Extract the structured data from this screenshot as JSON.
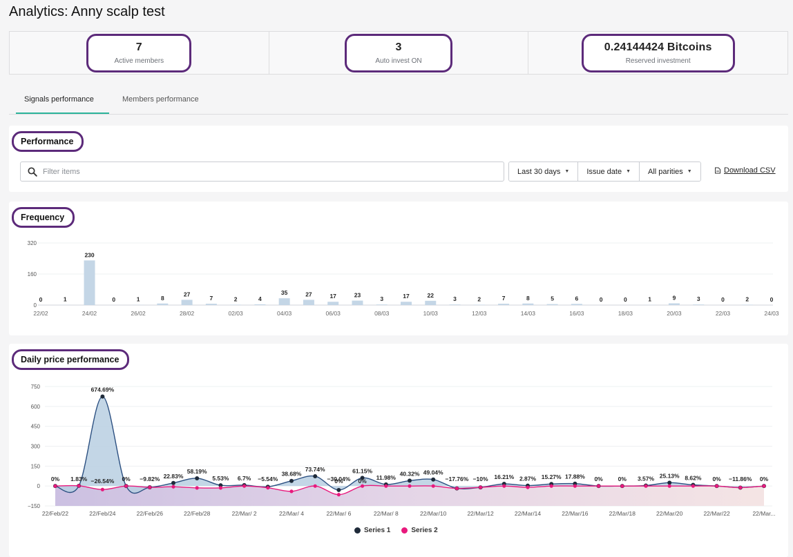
{
  "page": {
    "title": "Analytics: Anny scalp test"
  },
  "stats": [
    {
      "value": "7",
      "label": "Active members"
    },
    {
      "value": "3",
      "label": "Auto invest ON"
    },
    {
      "value": "0.24144424 Bitcoins",
      "label": "Reserved investment"
    }
  ],
  "tabs": [
    {
      "label": "Signals performance",
      "active": true
    },
    {
      "label": "Members performance",
      "active": false
    }
  ],
  "performance": {
    "title": "Performance",
    "filter_placeholder": "Filter items",
    "dropdowns": [
      "Last 30 days",
      "Issue date",
      "All parities"
    ],
    "download_label": "Download CSV"
  },
  "frequency": {
    "title": "Frequency"
  },
  "daily": {
    "title": "Daily price performance",
    "legend": [
      {
        "name": "Series 1",
        "color": "#1f2b3a"
      },
      {
        "name": "Series 2",
        "color": "#e8197d"
      }
    ]
  },
  "chart_data": [
    {
      "type": "bar",
      "title": "Frequency",
      "ylim": [
        0,
        320
      ],
      "yticks": [
        "320",
        "160",
        "0"
      ],
      "values": [
        0,
        1,
        230,
        0,
        1,
        8,
        27,
        7,
        2,
        4,
        35,
        27,
        17,
        23,
        3,
        17,
        22,
        3,
        2,
        7,
        8,
        5,
        6,
        0,
        0,
        1,
        9,
        3,
        0,
        2,
        0
      ],
      "xtick_labels": [
        "22/02",
        "24/02",
        "26/02",
        "28/02",
        "02/03",
        "04/03",
        "06/03",
        "08/03",
        "10/03",
        "12/03",
        "14/03",
        "16/03",
        "18/03",
        "20/03",
        "22/03",
        "24/03"
      ],
      "color": "#c4d6e6"
    },
    {
      "type": "area",
      "title": "Daily price performance",
      "ylim": [
        -150,
        750
      ],
      "yticks": [
        "750",
        "600",
        "450",
        "300",
        "150",
        "0",
        "−150"
      ],
      "xtick_labels": [
        "22/Feb/22",
        "22/Feb/24",
        "22/Feb/26",
        "22/Feb/28",
        "22/Mar/ 2",
        "22/Mar/ 4",
        "22/Mar/ 6",
        "22/Mar/ 8",
        "22/Mar/10",
        "22/Mar/12",
        "22/Mar/14",
        "22/Mar/16",
        "22/Mar/18",
        "22/Mar/20",
        "22/Mar/22",
        "22/Mar..."
      ],
      "series": [
        {
          "name": "Series 1",
          "values": [
            0,
            1.83,
            674.69,
            0,
            -9.82,
            22.83,
            58.19,
            5.53,
            6.7,
            -5.54,
            38.68,
            73.74,
            -30.04,
            61.15,
            11.98,
            40.32,
            49.04,
            -17.76,
            -10,
            16.21,
            2.87,
            15.27,
            17.88,
            0,
            0,
            3.57,
            25.13,
            8.62,
            0,
            -11.86,
            0
          ]
        },
        {
          "name": "Series 2",
          "values": [
            0,
            1.83,
            -26.54,
            0,
            -9.82,
            -5.5,
            -14,
            -14,
            0,
            -13,
            -40,
            0,
            -65,
            0,
            0,
            0,
            0,
            -17.76,
            -10,
            0,
            -10,
            0,
            0,
            0,
            0,
            0,
            0,
            0,
            0,
            -11.86,
            0
          ]
        }
      ],
      "labels": [
        "0%",
        "1.83%",
        "674.69%",
        "0%",
        "−9.82%",
        "22.83%",
        "58.19%",
        "5.53%",
        "6.7%",
        "−5.54%",
        "38.68%",
        "73.74%",
        "−30.04%",
        "61.15%",
        "11.98%",
        "40.32%",
        "49.04%",
        "−17.76%",
        "−10%",
        "16.21%",
        "2.87%",
        "15.27%",
        "17.88%",
        "0%",
        "0%",
        "3.57%",
        "25.13%",
        "8.62%",
        "0%",
        "−11.86%",
        "0%"
      ],
      "extra_labels": [
        "−26.54%",
        "0%",
        "0%"
      ]
    }
  ]
}
